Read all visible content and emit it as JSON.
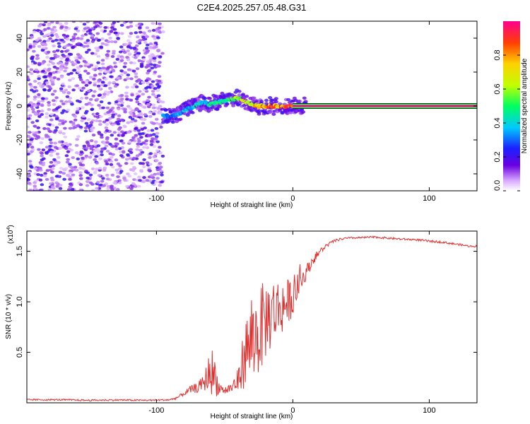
{
  "chart_data": [
    {
      "type": "heatmap",
      "title": "C2E4.2025.257.05.48.G31",
      "xlabel": "Height of straight line (km)",
      "ylabel": "Frequency (Hz)",
      "xlim": [
        -195,
        135
      ],
      "ylim": [
        -50,
        50
      ],
      "xticks": [
        -100,
        0,
        100
      ],
      "yticks": [
        -40,
        -20,
        0,
        20,
        40
      ],
      "colorbar": {
        "label": "Normalized spectral amplitude",
        "range": [
          0,
          1
        ],
        "ticks": [
          0.0,
          0.2,
          0.4,
          0.6,
          0.8
        ]
      },
      "noise_region": {
        "x_range": [
          -195,
          -95
        ],
        "y_range": [
          -50,
          50
        ],
        "amplitude": 0.15
      },
      "signal_track": {
        "x": [
          -95,
          -90,
          -85,
          -80,
          -75,
          -70,
          -65,
          -60,
          -55,
          -50,
          -45,
          -40,
          -35,
          -30,
          -25,
          -20,
          -15,
          -10,
          -5,
          0,
          5,
          10
        ],
        "y": [
          -6,
          -6,
          -5,
          -3,
          -1,
          1,
          2,
          1,
          2,
          3,
          4,
          5,
          3,
          1,
          0,
          0,
          0,
          0,
          0,
          0,
          0,
          0
        ],
        "amplitude": [
          0.35,
          0.35,
          0.38,
          0.4,
          0.42,
          0.44,
          0.45,
          0.5,
          0.5,
          0.52,
          0.55,
          0.68,
          0.72,
          0.8,
          0.82,
          0.86,
          0.88,
          0.9,
          0.92,
          0.94,
          0.96,
          0.98
        ]
      },
      "constant_tone": {
        "x_range": [
          0,
          135
        ],
        "frequency": 0,
        "amplitude": 0.98
      }
    },
    {
      "type": "line",
      "title": "",
      "xlabel": "Height of straight line (km)",
      "ylabel": "SNR (10 * v/v)",
      "y_multiplier_label": "(x10",
      "y_multiplier_exp": "4",
      "y_multiplier_close": ")",
      "xlim": [
        -195,
        135
      ],
      "ylim": [
        0,
        17000
      ],
      "xticks": [
        -100,
        0,
        100
      ],
      "yticks": [
        5000,
        10000,
        15000
      ],
      "ytick_labels": [
        "0.5",
        "1.0",
        "1.5"
      ],
      "series": [
        {
          "name": "SNR",
          "color": "#e03030",
          "x": [
            -195,
            -170,
            -150,
            -130,
            -110,
            -95,
            -90,
            -85,
            -80,
            -75,
            -70,
            -65,
            -60,
            -57,
            -54,
            -50,
            -45,
            -40,
            -35,
            -30,
            -25,
            -20,
            -15,
            -10,
            -5,
            0,
            5,
            10,
            15,
            20,
            25,
            30,
            35,
            40,
            50,
            60,
            70,
            80,
            90,
            100,
            110,
            120,
            130,
            135
          ],
          "y": [
            300,
            300,
            250,
            280,
            250,
            280,
            300,
            500,
            900,
            1300,
            1500,
            2000,
            3300,
            2500,
            1500,
            1200,
            1500,
            2200,
            5000,
            6000,
            7000,
            8200,
            9000,
            9400,
            9800,
            10500,
            11800,
            13000,
            14200,
            15000,
            15600,
            16000,
            16200,
            16300,
            16350,
            16400,
            16300,
            16200,
            16150,
            16000,
            15900,
            15700,
            15500,
            15500
          ],
          "noise_amplitude": [
            80,
            80,
            80,
            80,
            80,
            80,
            100,
            150,
            200,
            400,
            500,
            800,
            2500,
            2000,
            600,
            400,
            600,
            1200,
            3500,
            4000,
            4500,
            4000,
            3500,
            3000,
            2500,
            1800,
            1200,
            700,
            500,
            300,
            200,
            150,
            120,
            100,
            100,
            100,
            100,
            100,
            100,
            120,
            100,
            100,
            100,
            100
          ]
        }
      ]
    }
  ]
}
